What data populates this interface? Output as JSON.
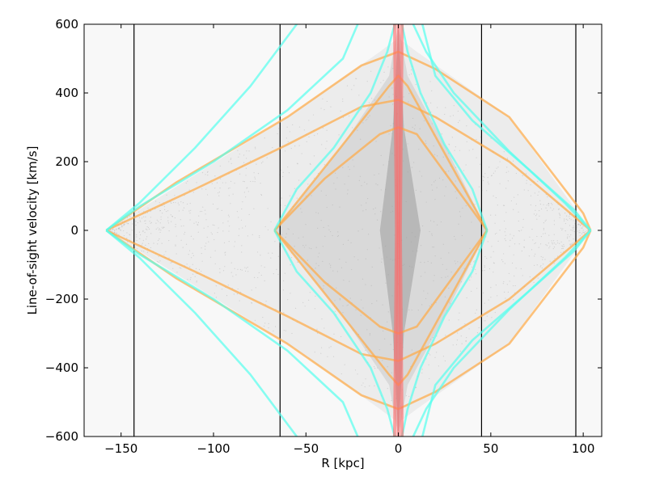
{
  "chart_data": {
    "type": "scatter",
    "title": "",
    "xlabel": "R [kpc]",
    "ylabel": "Line-of-sight velocity [km/s]",
    "xlim": [
      -170,
      110
    ],
    "ylim": [
      -600,
      600
    ],
    "x_ticks": [
      -150,
      -100,
      -50,
      0,
      50,
      100
    ],
    "x_tick_labels": [
      "−150",
      "−100",
      "−50",
      "0",
      "50",
      "100"
    ],
    "y_ticks": [
      -600,
      -400,
      -200,
      0,
      200,
      400,
      600
    ],
    "y_tick_labels": [
      "−600",
      "−400",
      "−200",
      "0",
      "200",
      "400",
      "600"
    ],
    "grid": false,
    "background_color": "#f8f8f8",
    "vertical_lines": [
      -143,
      -64,
      45,
      96
    ],
    "envelope_vertices": {
      "outer_left": [
        -158,
        0
      ],
      "inner_left": [
        -67,
        0
      ],
      "inner_right": [
        48,
        0
      ],
      "outer_right": [
        104,
        0
      ]
    },
    "series": [
      {
        "color": "#ffaa44",
        "curves": [
          [
            [
              -158,
              0
            ],
            [
              -120,
              140
            ],
            [
              -60,
              330
            ],
            [
              -20,
              480
            ],
            [
              0,
              520
            ],
            [
              20,
              470
            ],
            [
              60,
              330
            ],
            [
              100,
              50
            ],
            [
              104,
              0
            ]
          ],
          [
            [
              -158,
              0
            ],
            [
              -120,
              -140
            ],
            [
              -60,
              -330
            ],
            [
              -20,
              -480
            ],
            [
              0,
              -520
            ],
            [
              20,
              -470
            ],
            [
              60,
              -330
            ],
            [
              100,
              -50
            ],
            [
              104,
              0
            ]
          ],
          [
            [
              -158,
              0
            ],
            [
              -110,
              120
            ],
            [
              -60,
              250
            ],
            [
              -20,
              360
            ],
            [
              0,
              380
            ],
            [
              20,
              330
            ],
            [
              60,
              200
            ],
            [
              104,
              0
            ]
          ],
          [
            [
              -158,
              0
            ],
            [
              -110,
              -120
            ],
            [
              -60,
              -250
            ],
            [
              -20,
              -360
            ],
            [
              0,
              -380
            ],
            [
              20,
              -330
            ],
            [
              60,
              -200
            ],
            [
              104,
              0
            ]
          ],
          [
            [
              -67,
              0
            ],
            [
              -40,
              150
            ],
            [
              -10,
              280
            ],
            [
              0,
              300
            ],
            [
              10,
              280
            ],
            [
              48,
              0
            ]
          ],
          [
            [
              -67,
              0
            ],
            [
              -40,
              -150
            ],
            [
              -10,
              -280
            ],
            [
              0,
              -300
            ],
            [
              10,
              -280
            ],
            [
              48,
              0
            ]
          ],
          [
            [
              -67,
              0
            ],
            [
              -30,
              250
            ],
            [
              -5,
              420
            ],
            [
              0,
              450
            ],
            [
              5,
              420
            ],
            [
              48,
              0
            ]
          ],
          [
            [
              -67,
              0
            ],
            [
              -30,
              -250
            ],
            [
              -5,
              -420
            ],
            [
              0,
              -450
            ],
            [
              5,
              -420
            ],
            [
              48,
              0
            ]
          ]
        ]
      },
      {
        "color": "#55ffee",
        "curves": [
          [
            [
              -158,
              0
            ],
            [
              -140,
              80
            ],
            [
              -110,
              240
            ],
            [
              -80,
              420
            ],
            [
              -55,
              600
            ]
          ],
          [
            [
              -158,
              0
            ],
            [
              -140,
              -80
            ],
            [
              -110,
              -240
            ],
            [
              -80,
              -420
            ],
            [
              -55,
              -600
            ]
          ],
          [
            [
              -158,
              0
            ],
            [
              -140,
              -70
            ],
            [
              -100,
              -200
            ],
            [
              -60,
              -350
            ],
            [
              -30,
              -500
            ],
            [
              -22,
              -600
            ]
          ],
          [
            [
              -158,
              0
            ],
            [
              -140,
              70
            ],
            [
              -100,
              200
            ],
            [
              -60,
              350
            ],
            [
              -30,
              500
            ],
            [
              -22,
              600
            ]
          ],
          [
            [
              104,
              0
            ],
            [
              90,
              80
            ],
            [
              60,
              230
            ],
            [
              30,
              400
            ],
            [
              15,
              520
            ],
            [
              8,
              600
            ]
          ],
          [
            [
              104,
              0
            ],
            [
              90,
              -80
            ],
            [
              60,
              -230
            ],
            [
              30,
              -400
            ],
            [
              15,
              -520
            ],
            [
              8,
              -600
            ]
          ],
          [
            [
              104,
              0
            ],
            [
              95,
              60
            ],
            [
              70,
              180
            ],
            [
              40,
              320
            ],
            [
              20,
              450
            ],
            [
              13,
              600
            ]
          ],
          [
            [
              104,
              0
            ],
            [
              95,
              -60
            ],
            [
              70,
              -180
            ],
            [
              40,
              -320
            ],
            [
              20,
              -450
            ],
            [
              13,
              -600
            ]
          ],
          [
            [
              -67,
              0
            ],
            [
              -55,
              120
            ],
            [
              -35,
              240
            ],
            [
              -15,
              400
            ],
            [
              -6,
              520
            ],
            [
              -2,
              600
            ]
          ],
          [
            [
              -67,
              0
            ],
            [
              -55,
              -120
            ],
            [
              -35,
              -240
            ],
            [
              -15,
              -400
            ],
            [
              -6,
              -520
            ],
            [
              -2,
              -600
            ]
          ],
          [
            [
              48,
              0
            ],
            [
              40,
              120
            ],
            [
              25,
              250
            ],
            [
              12,
              400
            ],
            [
              5,
              520
            ],
            [
              2,
              600
            ]
          ],
          [
            [
              48,
              0
            ],
            [
              40,
              -120
            ],
            [
              25,
              -250
            ],
            [
              12,
              -400
            ],
            [
              5,
              -520
            ],
            [
              2,
              -600
            ]
          ]
        ]
      },
      {
        "color": "#ff6666",
        "curves": [
          [
            [
              0,
              -600
            ],
            [
              0,
              600
            ]
          ],
          [
            [
              -2,
              -600
            ],
            [
              -1,
              0
            ],
            [
              -2,
              600
            ]
          ],
          [
            [
              2,
              -600
            ],
            [
              1,
              0
            ],
            [
              2,
              600
            ]
          ]
        ]
      }
    ]
  }
}
